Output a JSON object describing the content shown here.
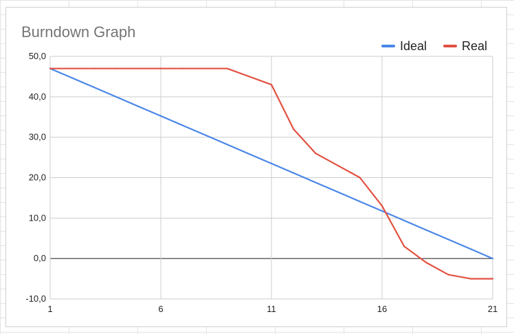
{
  "colors": {
    "ideal": "#4a86e8",
    "real": "#e25041",
    "grid": "#cccccc",
    "zero_line": "#333333"
  },
  "chart_data": {
    "type": "line",
    "title": "Burndown Graph",
    "xlabel": "",
    "ylabel": "",
    "x": [
      1,
      2,
      3,
      4,
      5,
      6,
      7,
      8,
      9,
      10,
      11,
      12,
      13,
      14,
      15,
      16,
      17,
      18,
      19,
      20,
      21
    ],
    "xlim": [
      1,
      21
    ],
    "ylim": [
      -10,
      50
    ],
    "x_ticks": [
      "1",
      "6",
      "11",
      "16",
      "21"
    ],
    "x_tick_values": [
      1,
      6,
      11,
      16,
      21
    ],
    "y_ticks": [
      "-10,0",
      "0,0",
      "10,0",
      "20,0",
      "30,0",
      "40,0",
      "50,0"
    ],
    "y_tick_values": [
      -10,
      0,
      10,
      20,
      30,
      40,
      50
    ],
    "grid": true,
    "legend": "top-right",
    "series": [
      {
        "name": "Ideal",
        "color": "#4a86e8",
        "values": [
          47,
          44.65,
          42.3,
          39.95,
          37.6,
          35.25,
          32.9,
          30.55,
          28.2,
          25.85,
          23.5,
          21.15,
          18.8,
          16.45,
          14.1,
          11.75,
          9.4,
          7.05,
          4.7,
          2.35,
          0
        ]
      },
      {
        "name": "Real",
        "color": "#e25041",
        "values": [
          47,
          47,
          47,
          47,
          47,
          47,
          47,
          47,
          47,
          45,
          43,
          32,
          26,
          23,
          20,
          13,
          3,
          -1,
          -4,
          -5,
          -5
        ]
      }
    ]
  }
}
